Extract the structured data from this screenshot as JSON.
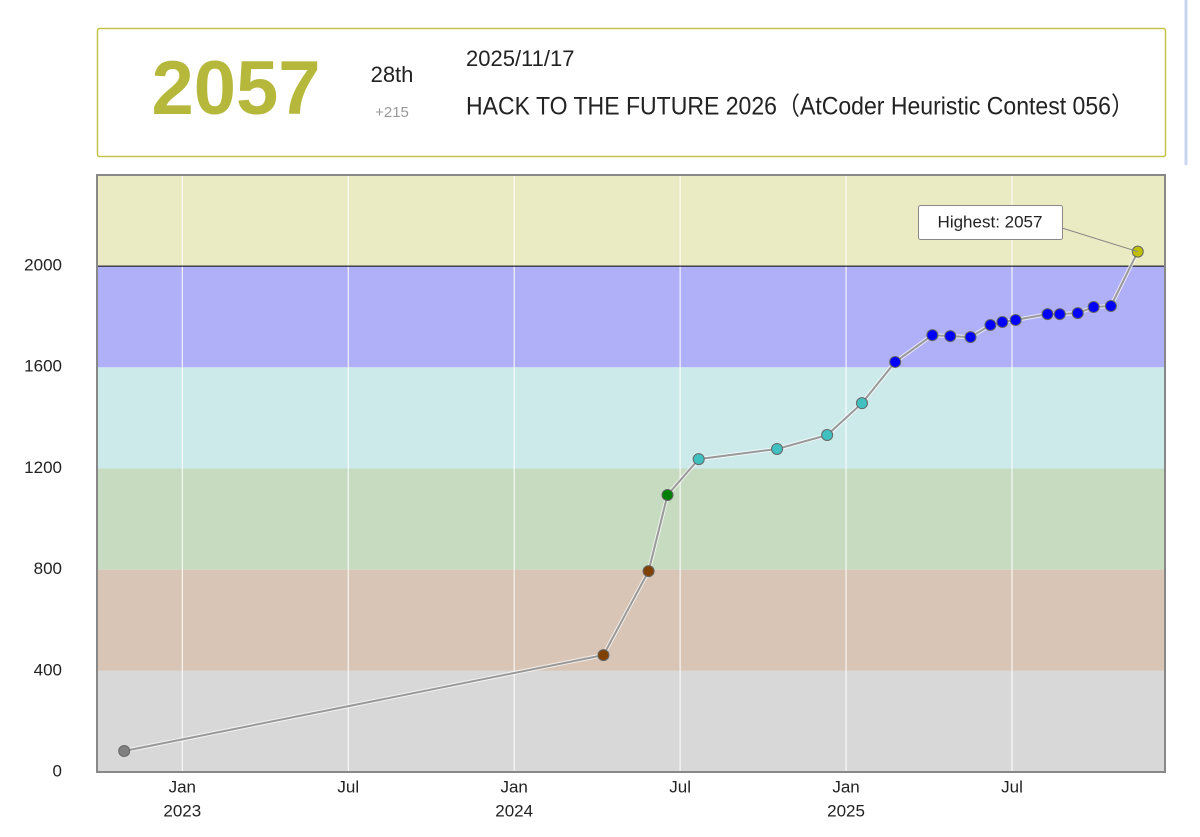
{
  "header": {
    "rating": "2057",
    "rank": "28th",
    "diff": "+215",
    "date": "2025/11/17",
    "contest": "HACK TO THE FUTURE 2026（AtCoder Heuristic Contest 056）"
  },
  "chart_data": {
    "type": "line",
    "x": [
      2022.825,
      2024.269,
      2024.405,
      2024.462,
      2024.556,
      2024.792,
      2024.943,
      2025.048,
      2025.148,
      2025.26,
      2025.314,
      2025.375,
      2025.435,
      2025.471,
      2025.511,
      2025.607,
      2025.644,
      2025.698,
      2025.746,
      2025.798,
      2025.879
    ],
    "values": [
      83,
      462,
      794,
      1095,
      1237,
      1277,
      1332,
      1458,
      1621,
      1727,
      1723,
      1719,
      1767,
      1779,
      1787,
      1810,
      1810,
      1814,
      1838,
      1842,
      2057
    ],
    "line_color": "#999999",
    "xlim": [
      2022.743,
      2025.961
    ],
    "ylim": [
      0,
      2360
    ],
    "xticks": [
      {
        "value": 2023,
        "label": "Jan"
      },
      {
        "value": 2023.5,
        "label": "Jul"
      },
      {
        "value": 2024,
        "label": "Jan"
      },
      {
        "value": 2024.5,
        "label": "Jul"
      },
      {
        "value": 2025,
        "label": "Jan"
      },
      {
        "value": 2025.5,
        "label": "Jul"
      }
    ],
    "year_labels": [
      2023,
      2024,
      2025
    ],
    "yticks": [
      0,
      400,
      800,
      1200,
      1600,
      2000
    ],
    "bands": [
      {
        "from": 0,
        "to": 400,
        "fill": "#d8d8d8",
        "point": "#808080"
      },
      {
        "from": 400,
        "to": 800,
        "fill": "#d8c5b6",
        "point": "#804000"
      },
      {
        "from": 800,
        "to": 1200,
        "fill": "#c6dbc0",
        "point": "#008000"
      },
      {
        "from": 1200,
        "to": 1600,
        "fill": "#cdeaea",
        "point": "#40c0c0"
      },
      {
        "from": 1600,
        "to": 2000,
        "fill": "#b0b0f8",
        "point": "#0000ff"
      },
      {
        "from": 2000,
        "to": 2400,
        "fill": "#ebebc3",
        "point": "#c0c000",
        "edge": true
      }
    ],
    "annotation": "Highest: 2057"
  }
}
